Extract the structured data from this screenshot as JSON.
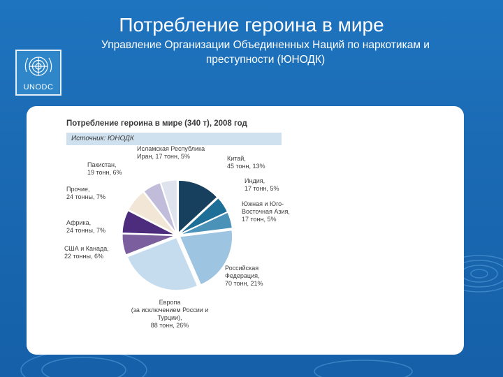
{
  "slide": {
    "title": "Потребление героина в мире",
    "subtitle_line1": "Управление Организации Объединенных Наций по наркотикам и",
    "subtitle_line2": "преступности (ЮНОДК)",
    "logo_text": "UNODC"
  },
  "chart_data": {
    "type": "pie",
    "title": "Потребление героина в мире (340 т), 2008 год",
    "source": "Источник: ЮНОДК",
    "unit": "тонн",
    "slices": [
      {
        "label_lines": [
          "Китай,",
          "45 тонн, 13%"
        ],
        "tons": 45,
        "percent": 13,
        "color": "#17405f"
      },
      {
        "label_lines": [
          "Индия,",
          "17 тонн, 5%"
        ],
        "tons": 17,
        "percent": 5,
        "color": "#1e6f97"
      },
      {
        "label_lines": [
          "Южная и Юго-",
          "Восточная Азия,",
          "17 тонн, 5%"
        ],
        "tons": 17,
        "percent": 5,
        "color": "#4b92b8"
      },
      {
        "label_lines": [
          "Российская",
          "Федерация,",
          "70 тонн, 21%"
        ],
        "tons": 70,
        "percent": 21,
        "color": "#9dc4e0"
      },
      {
        "label_lines": [
          "Европа",
          "(за исключением России и",
          "Турции),",
          "88 тонн, 26%"
        ],
        "tons": 88,
        "percent": 26,
        "color": "#c4dcee"
      },
      {
        "label_lines": [
          "США и Канада,",
          "22 тонны, 6%"
        ],
        "tons": 22,
        "percent": 6,
        "color": "#7a5e9d"
      },
      {
        "label_lines": [
          "Африка,",
          "24 тонны, 7%"
        ],
        "tons": 24,
        "percent": 7,
        "color": "#4d2c7d"
      },
      {
        "label_lines": [
          "Прочие,",
          "24 тонны, 7%"
        ],
        "tons": 24,
        "percent": 7,
        "color": "#f2e6d6"
      },
      {
        "label_lines": [
          "Пакистан,",
          "19 тонн, 6%"
        ],
        "tons": 19,
        "percent": 6,
        "color": "#c0bcd9"
      },
      {
        "label_lines": [
          "Исламская Республика",
          "Иран, 17 тонн, 5%"
        ],
        "tons": 17,
        "percent": 5,
        "color": "#dfe3ee"
      }
    ]
  }
}
